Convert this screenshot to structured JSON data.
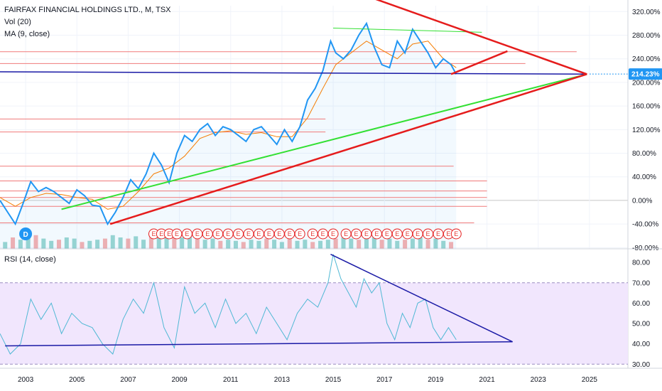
{
  "legend": {
    "symbol": "FAIRFAX FINANCIAL HOLDINGS LTD., M, TSX",
    "vol": "Vol (20)",
    "ma": "MA (9, close)",
    "rsi": "RSI (14, close)"
  },
  "colors": {
    "price": "#2196f3",
    "ma": "#f57c00",
    "rsi": "#4fb8d4",
    "red_trend": "#e51c1c",
    "green_trend": "#33e033",
    "blue_line": "#1a1aa6",
    "hline": "#f07a7a",
    "rsi_band": "#f1e6fd",
    "badge": "#2196f3"
  },
  "chart_data": [
    {
      "type": "line",
      "pane": "price",
      "scale": "percent",
      "ylim": [
        -82,
        330
      ],
      "xlim": [
        2002.0,
        2026.5
      ],
      "yticks": [
        "320.00%",
        "280.00%",
        "240.00%",
        "200.00%",
        "160.00%",
        "120.00%",
        "80.00%",
        "40.00%",
        "0.00%",
        "-40.00%",
        "-80.00%"
      ],
      "ytick_values": [
        320,
        280,
        240,
        200,
        160,
        120,
        80,
        40,
        0,
        -40,
        -80
      ],
      "last_value_label": "214.23%",
      "last_value": 214.23,
      "series": [
        {
          "name": "Close",
          "x": [
            2002.0,
            2002.3,
            2002.6,
            2002.9,
            2003.2,
            2003.5,
            2003.8,
            2004.1,
            2004.4,
            2004.7,
            2005.0,
            2005.3,
            2005.6,
            2005.9,
            2006.2,
            2006.5,
            2006.8,
            2007.1,
            2007.4,
            2007.7,
            2008.0,
            2008.3,
            2008.6,
            2008.9,
            2009.2,
            2009.5,
            2009.8,
            2010.1,
            2010.4,
            2010.7,
            2011.0,
            2011.3,
            2011.6,
            2011.9,
            2012.2,
            2012.5,
            2012.8,
            2013.1,
            2013.4,
            2013.7,
            2014.0,
            2014.3,
            2014.6,
            2014.9,
            2015.1,
            2015.4,
            2015.7,
            2016.0,
            2016.3,
            2016.6,
            2016.9,
            2017.2,
            2017.5,
            2017.8,
            2018.1,
            2018.4,
            2018.7,
            2019.0,
            2019.3,
            2019.6,
            2019.8
          ],
          "y": [
            0,
            -20,
            -40,
            -5,
            32,
            15,
            22,
            15,
            5,
            -5,
            18,
            8,
            -8,
            -10,
            -40,
            -20,
            5,
            35,
            20,
            45,
            80,
            60,
            30,
            80,
            110,
            100,
            120,
            130,
            110,
            125,
            120,
            110,
            100,
            120,
            125,
            110,
            95,
            120,
            100,
            125,
            170,
            190,
            220,
            270,
            250,
            240,
            255,
            280,
            300,
            260,
            230,
            225,
            270,
            250,
            290,
            270,
            250,
            225,
            240,
            230,
            214
          ]
        },
        {
          "name": "MA 9",
          "x": [
            2002.0,
            2002.6,
            2003.2,
            2003.8,
            2004.4,
            2005.0,
            2005.6,
            2006.2,
            2006.8,
            2007.4,
            2008.0,
            2008.6,
            2009.2,
            2009.8,
            2010.4,
            2011.0,
            2011.6,
            2012.2,
            2012.8,
            2013.4,
            2014.0,
            2014.6,
            2015.1,
            2015.7,
            2016.3,
            2016.9,
            2017.5,
            2018.1,
            2018.7,
            2019.3,
            2019.8
          ],
          "y": [
            5,
            -10,
            5,
            12,
            10,
            5,
            2,
            -15,
            -10,
            15,
            45,
            55,
            75,
            105,
            115,
            118,
            112,
            115,
            108,
            108,
            140,
            190,
            230,
            250,
            270,
            255,
            240,
            265,
            270,
            240,
            225
          ]
        },
        {
          "name": "Vol 20",
          "x": [
            2002.2,
            2002.5,
            2002.8,
            2003.1,
            2003.4,
            2003.7,
            2004.0,
            2004.3,
            2004.6,
            2004.9,
            2005.2,
            2005.5,
            2005.8,
            2006.1,
            2006.4,
            2006.7,
            2007.0,
            2007.3,
            2007.6,
            2007.9,
            2008.2,
            2008.5,
            2008.8,
            2009.1,
            2009.4,
            2009.7,
            2010.0,
            2010.3,
            2010.6,
            2010.9,
            2011.2,
            2011.5,
            2011.8,
            2012.1,
            2012.4,
            2012.7,
            2013.0,
            2013.3,
            2013.6,
            2013.9,
            2014.2,
            2014.5,
            2014.8,
            2015.1,
            2015.4,
            2015.7,
            2016.0,
            2016.3,
            2016.6,
            2016.9,
            2017.2,
            2017.5,
            2017.8,
            2018.1,
            2018.4,
            2018.7,
            2019.0,
            2019.3,
            2019.6
          ],
          "y": [
            6,
            10,
            8,
            14,
            12,
            9,
            7,
            8,
            10,
            9,
            6,
            7,
            8,
            9,
            12,
            10,
            9,
            11,
            8,
            14,
            12,
            16,
            13,
            10,
            12,
            9,
            8,
            9,
            7,
            8,
            7,
            6,
            8,
            7,
            9,
            8,
            6,
            10,
            7,
            8,
            6,
            7,
            8,
            9,
            10,
            9,
            8,
            9,
            10,
            8,
            9,
            7,
            8,
            9,
            10,
            8,
            9,
            7,
            6
          ]
        }
      ],
      "annotations": {
        "red_trend_upper": {
          "x": [
            2016.6,
            2024.9
          ],
          "y": [
            342,
            214
          ]
        },
        "red_trend_lower": {
          "x": [
            2006.3,
            2024.9
          ],
          "y": [
            -40,
            214
          ]
        },
        "red_short_upper": {
          "x": [
            2019.6,
            2021.8
          ],
          "y": [
            214,
            253
          ]
        },
        "green_upper": {
          "x": [
            2015.0,
            2020.8
          ],
          "y": [
            292,
            285
          ]
        },
        "green_lower": {
          "x": [
            2004.4,
            2024.9
          ],
          "y": [
            -15,
            214
          ]
        },
        "blue_horizontal": {
          "x": [
            2002.0,
            2024.9
          ],
          "y": [
            218,
            214
          ]
        },
        "horizontal_levels": [
          {
            "y": 252,
            "x_end": 2024.5
          },
          {
            "y": 232,
            "x_end": 2022.5
          },
          {
            "y": 138,
            "x_end": 2014.7
          },
          {
            "y": 116,
            "x_end": 2014.7
          },
          {
            "y": 58,
            "x_end": 2019.7
          },
          {
            "y": 33,
            "x_end": 2021.0
          },
          {
            "y": 16,
            "x_end": 2021.0
          },
          {
            "y": 5,
            "x_end": 2021.0
          },
          {
            "y": -10,
            "x_end": 2021.0
          },
          {
            "y": -38,
            "x_end": 2020.5
          }
        ],
        "dividend_badge": "D",
        "earnings_marker": "E",
        "earnings_x": [
          2008.0,
          2008.3,
          2008.6,
          2008.9,
          2009.3,
          2009.7,
          2010.1,
          2010.5,
          2010.9,
          2011.3,
          2011.7,
          2012.1,
          2012.5,
          2012.9,
          2013.3,
          2013.7,
          2014.2,
          2014.6,
          2015.0,
          2015.5,
          2015.9,
          2016.3,
          2016.7,
          2017.1,
          2017.5,
          2017.9,
          2018.3,
          2018.7,
          2019.1,
          2019.5,
          2019.8
        ]
      }
    },
    {
      "type": "line",
      "pane": "rsi",
      "ylim": [
        28,
        86
      ],
      "yticks": [
        "80.00",
        "70.00",
        "60.00",
        "50.00",
        "40.00",
        "30.00"
      ],
      "ytick_values": [
        80,
        70,
        60,
        50,
        40,
        30
      ],
      "band": [
        30,
        70
      ],
      "series": [
        {
          "name": "RSI 14",
          "x": [
            2002.0,
            2002.4,
            2002.8,
            2003.2,
            2003.6,
            2004.0,
            2004.4,
            2004.8,
            2005.2,
            2005.6,
            2006.0,
            2006.4,
            2006.8,
            2007.2,
            2007.6,
            2008.0,
            2008.4,
            2008.8,
            2009.2,
            2009.6,
            2010.0,
            2010.4,
            2010.8,
            2011.2,
            2011.6,
            2012.0,
            2012.4,
            2012.8,
            2013.2,
            2013.6,
            2014.0,
            2014.4,
            2014.8,
            2015.0,
            2015.3,
            2015.6,
            2015.9,
            2016.2,
            2016.5,
            2016.8,
            2017.1,
            2017.4,
            2017.7,
            2018.0,
            2018.3,
            2018.6,
            2018.9,
            2019.2,
            2019.5,
            2019.8
          ],
          "y": [
            45,
            35,
            40,
            62,
            52,
            60,
            45,
            55,
            50,
            48,
            40,
            35,
            52,
            62,
            55,
            70,
            48,
            38,
            68,
            55,
            60,
            48,
            62,
            50,
            55,
            45,
            58,
            50,
            42,
            55,
            62,
            58,
            70,
            84,
            72,
            65,
            58,
            72,
            65,
            70,
            50,
            42,
            55,
            48,
            60,
            62,
            48,
            42,
            48,
            42
          ]
        }
      ],
      "annotations": {
        "blue_trend": {
          "x": [
            2014.9,
            2022.0
          ],
          "y": [
            84,
            41
          ]
        },
        "blue_horizontal": {
          "x": [
            2002.2,
            2022.0
          ],
          "y": [
            39,
            41
          ]
        }
      }
    }
  ],
  "xaxis": {
    "labels": [
      "2003",
      "2005",
      "2007",
      "2009",
      "2011",
      "2013",
      "2015",
      "2017",
      "2019",
      "2021",
      "2023",
      "2025"
    ],
    "values": [
      2003,
      2005,
      2007,
      2009,
      2011,
      2013,
      2015,
      2017,
      2019,
      2021,
      2023,
      2025
    ]
  }
}
